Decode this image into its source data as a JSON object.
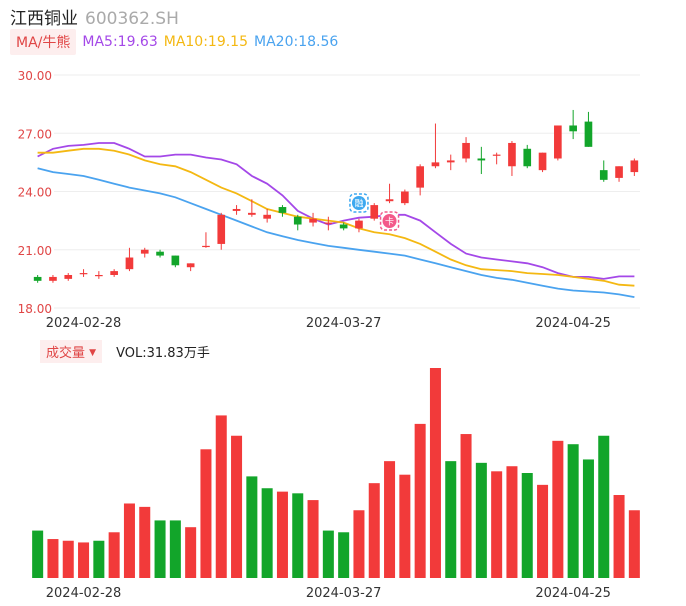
{
  "header": {
    "title": "江西铜业",
    "code": "600362.SH"
  },
  "ma_legend": {
    "toggle_label": "MA/牛熊",
    "items": [
      {
        "label": "MA5:19.63",
        "color": "#a448e8"
      },
      {
        "label": "MA10:19.15",
        "color": "#f4b812"
      },
      {
        "label": "MA20:18.56",
        "color": "#4aa3ef"
      }
    ]
  },
  "volume_legend": {
    "toggle_label": "成交量",
    "caret": "▼",
    "value_label": "VOL:31.83万手"
  },
  "colors": {
    "up": "#f23a3a",
    "down": "#12a52a",
    "grid": "#eeeeee",
    "price_axis": "#e04646"
  },
  "markers": [
    {
      "index": 21,
      "icon": "blue-event-icon",
      "glyph": "融",
      "color": "#3ca8f0"
    },
    {
      "index": 23,
      "icon": "red-event-icon",
      "glyph": "卡",
      "color": "#f35a8a"
    }
  ],
  "chart_data": [
    {
      "type": "candlestick",
      "title": "",
      "ylim": [
        18.0,
        30.0
      ],
      "y_ticks": [
        "30.00",
        "27.00",
        "24.00",
        "21.00",
        "18.00"
      ],
      "x_tick_labels": [
        {
          "index": 3,
          "label": "2024-02-28"
        },
        {
          "index": 20,
          "label": "2024-03-27"
        },
        {
          "index": 35,
          "label": "2024-04-25"
        }
      ],
      "candles": [
        {
          "o": 19.6,
          "c": 19.4,
          "h": 19.7,
          "l": 19.3
        },
        {
          "o": 19.4,
          "c": 19.6,
          "h": 19.7,
          "l": 19.3
        },
        {
          "o": 19.5,
          "c": 19.7,
          "h": 19.8,
          "l": 19.4
        },
        {
          "o": 19.8,
          "c": 19.8,
          "h": 20.0,
          "l": 19.6
        },
        {
          "o": 19.7,
          "c": 19.7,
          "h": 19.9,
          "l": 19.5
        },
        {
          "o": 19.7,
          "c": 19.9,
          "h": 20.0,
          "l": 19.6
        },
        {
          "o": 20.0,
          "c": 20.6,
          "h": 21.1,
          "l": 19.9
        },
        {
          "o": 20.8,
          "c": 21.0,
          "h": 21.1,
          "l": 20.6
        },
        {
          "o": 20.9,
          "c": 20.7,
          "h": 21.0,
          "l": 20.6
        },
        {
          "o": 20.7,
          "c": 20.2,
          "h": 20.7,
          "l": 20.1
        },
        {
          "o": 20.1,
          "c": 20.3,
          "h": 20.3,
          "l": 19.9
        },
        {
          "o": 21.2,
          "c": 21.2,
          "h": 21.9,
          "l": 21.1
        },
        {
          "o": 21.3,
          "c": 22.8,
          "h": 22.9,
          "l": 21.0
        },
        {
          "o": 23.0,
          "c": 23.1,
          "h": 23.3,
          "l": 22.8
        },
        {
          "o": 22.8,
          "c": 22.9,
          "h": 23.6,
          "l": 22.7
        },
        {
          "o": 22.6,
          "c": 22.8,
          "h": 23.1,
          "l": 22.4
        },
        {
          "o": 23.2,
          "c": 22.9,
          "h": 23.3,
          "l": 22.7
        },
        {
          "o": 22.7,
          "c": 22.3,
          "h": 22.8,
          "l": 22.0
        },
        {
          "o": 22.4,
          "c": 22.6,
          "h": 22.9,
          "l": 22.2
        },
        {
          "o": 22.4,
          "c": 22.4,
          "h": 22.7,
          "l": 22.0
        },
        {
          "o": 22.3,
          "c": 22.1,
          "h": 22.4,
          "l": 22.0
        },
        {
          "o": 22.1,
          "c": 22.5,
          "h": 22.6,
          "l": 21.9
        },
        {
          "o": 22.6,
          "c": 23.3,
          "h": 23.4,
          "l": 22.5
        },
        {
          "o": 23.5,
          "c": 23.6,
          "h": 24.4,
          "l": 23.4
        },
        {
          "o": 23.4,
          "c": 24.0,
          "h": 24.1,
          "l": 23.3
        },
        {
          "o": 24.2,
          "c": 25.3,
          "h": 25.4,
          "l": 23.8
        },
        {
          "o": 25.3,
          "c": 25.5,
          "h": 27.5,
          "l": 25.2
        },
        {
          "o": 25.5,
          "c": 25.6,
          "h": 25.9,
          "l": 25.1
        },
        {
          "o": 25.7,
          "c": 26.5,
          "h": 26.8,
          "l": 25.5
        },
        {
          "o": 25.7,
          "c": 25.6,
          "h": 26.3,
          "l": 24.9
        },
        {
          "o": 25.9,
          "c": 25.9,
          "h": 26.0,
          "l": 25.4
        },
        {
          "o": 25.3,
          "c": 26.5,
          "h": 26.6,
          "l": 24.8
        },
        {
          "o": 26.2,
          "c": 25.3,
          "h": 26.4,
          "l": 25.2
        },
        {
          "o": 25.1,
          "c": 26.0,
          "h": 26.0,
          "l": 25.0
        },
        {
          "o": 25.7,
          "c": 27.4,
          "h": 27.4,
          "l": 25.6
        },
        {
          "o": 27.4,
          "c": 27.1,
          "h": 28.2,
          "l": 26.7
        },
        {
          "o": 27.6,
          "c": 26.3,
          "h": 28.1,
          "l": 26.3
        },
        {
          "o": 25.1,
          "c": 24.6,
          "h": 25.6,
          "l": 24.5
        },
        {
          "o": 24.7,
          "c": 25.3,
          "h": 25.3,
          "l": 24.5
        },
        {
          "o": 25.0,
          "c": 25.6,
          "h": 25.7,
          "l": 24.8
        }
      ],
      "series": [
        {
          "name": "MA5",
          "color": "#a448e8",
          "values": [
            25.8,
            26.2,
            26.35,
            26.4,
            26.5,
            26.5,
            26.2,
            25.8,
            25.8,
            25.9,
            25.9,
            25.75,
            25.65,
            25.4,
            24.8,
            24.4,
            23.8,
            23.0,
            22.6,
            22.3,
            22.5,
            22.65,
            22.7,
            22.8,
            22.8,
            22.5,
            21.9,
            21.3,
            20.8,
            20.6,
            20.5,
            20.4,
            20.3,
            20.1,
            19.8,
            19.6,
            19.6,
            19.5,
            19.63,
            19.63
          ]
        },
        {
          "name": "MA10",
          "color": "#f4b812",
          "values": [
            26.0,
            26.0,
            26.1,
            26.2,
            26.2,
            26.1,
            25.9,
            25.6,
            25.4,
            25.3,
            25.0,
            24.6,
            24.2,
            23.9,
            23.5,
            23.1,
            22.9,
            22.7,
            22.6,
            22.5,
            22.4,
            22.1,
            21.9,
            21.8,
            21.6,
            21.3,
            20.9,
            20.5,
            20.2,
            20.0,
            19.95,
            19.9,
            19.8,
            19.75,
            19.7,
            19.6,
            19.5,
            19.4,
            19.2,
            19.15
          ]
        },
        {
          "name": "MA20",
          "color": "#4aa3ef",
          "values": [
            25.2,
            25.0,
            24.9,
            24.8,
            24.6,
            24.4,
            24.2,
            24.05,
            23.9,
            23.7,
            23.4,
            23.1,
            22.8,
            22.5,
            22.2,
            21.9,
            21.7,
            21.5,
            21.35,
            21.2,
            21.1,
            21.0,
            20.9,
            20.8,
            20.7,
            20.5,
            20.3,
            20.1,
            19.9,
            19.7,
            19.55,
            19.45,
            19.3,
            19.15,
            19.0,
            18.9,
            18.85,
            18.8,
            18.7,
            18.56
          ]
        }
      ]
    },
    {
      "type": "bar",
      "title": "",
      "ylabel": "",
      "ylim": [
        0,
        62
      ],
      "x_tick_labels": [
        {
          "index": 3,
          "label": "2024-02-28"
        },
        {
          "index": 20,
          "label": "2024-03-27"
        },
        {
          "index": 35,
          "label": "2024-04-25"
        }
      ],
      "values": [
        14,
        11.5,
        11,
        10.5,
        11,
        13.5,
        22,
        21,
        17,
        17,
        15,
        38,
        48,
        42,
        30,
        26.5,
        25.5,
        25,
        23,
        14,
        13.5,
        20,
        28,
        34.5,
        30.5,
        45.5,
        62,
        34.5,
        42.5,
        34,
        31.5,
        33,
        31,
        27.5,
        40.5,
        39.5,
        35,
        42,
        24.5,
        20
      ],
      "directions": [
        "down",
        "up",
        "up",
        "up",
        "down",
        "up",
        "up",
        "up",
        "down",
        "down",
        "up",
        "up",
        "up",
        "up",
        "down",
        "down",
        "up",
        "down",
        "up",
        "down",
        "down",
        "up",
        "up",
        "up",
        "up",
        "up",
        "up",
        "down",
        "up",
        "down",
        "up",
        "up",
        "down",
        "up",
        "up",
        "down",
        "down",
        "down",
        "up",
        "up"
      ]
    }
  ]
}
